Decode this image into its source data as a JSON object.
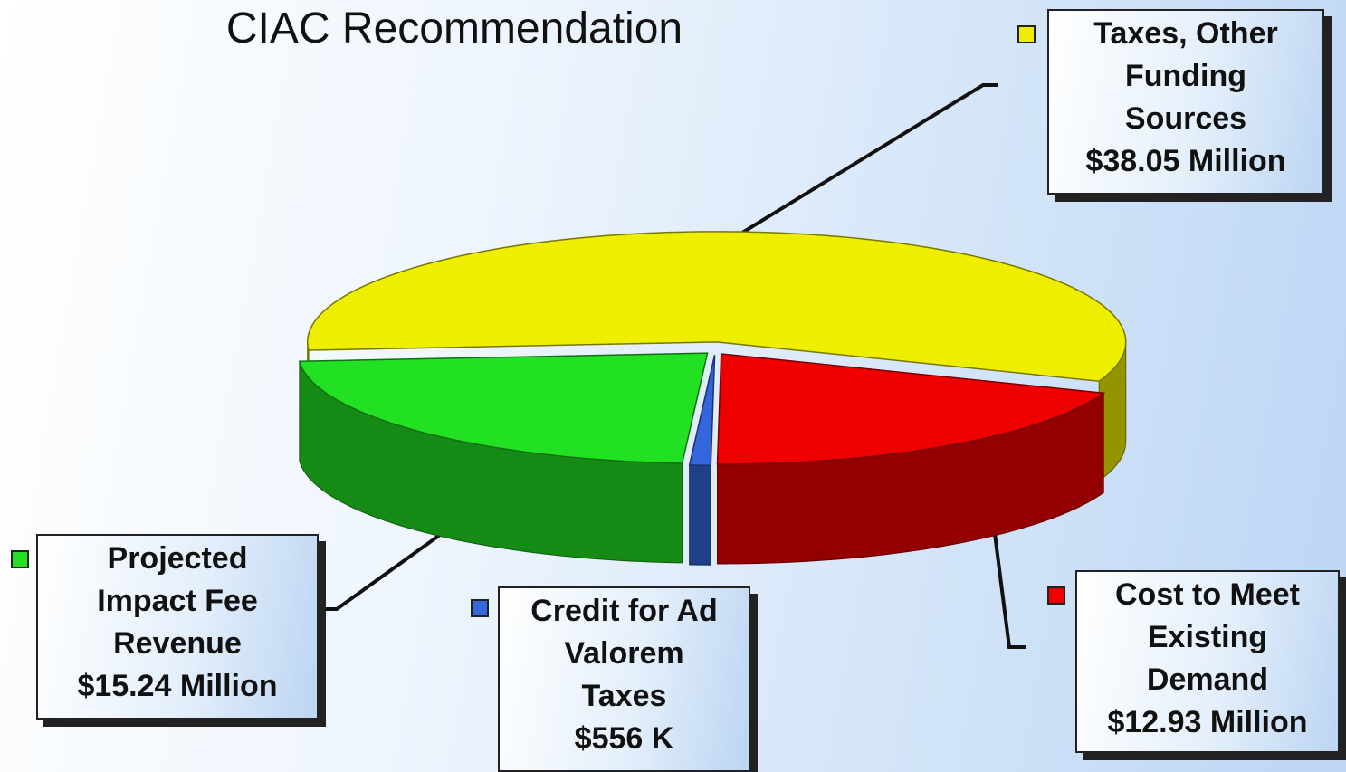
{
  "chart_data": {
    "type": "pie",
    "title": "CIAC Recommendation",
    "categories": [
      "Taxes, Other Funding Sources",
      "Cost to Meet Existing Demand",
      "Credit for Ad Valorem Taxes",
      "Projected Impact Fee Revenue"
    ],
    "values": [
      38.05,
      12.93,
      0.556,
      15.24
    ],
    "value_labels": [
      "$38.05 Million",
      "$12.93 Million",
      "$556 K",
      "$15.24 Million"
    ],
    "colors": [
      "#eeee00",
      "#ee0000",
      "#3366dd",
      "#22e022"
    ]
  }
}
